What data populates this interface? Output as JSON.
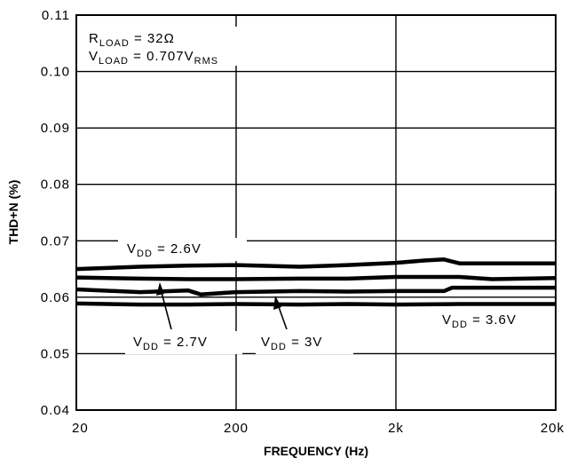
{
  "chart_data": {
    "type": "line",
    "title": "",
    "xlabel": "FREQUENCY (Hz)",
    "ylabel": "THD+N (%)",
    "x_scale": "log",
    "xlim": [
      20,
      20000
    ],
    "ylim": [
      0.04,
      0.11
    ],
    "grid": true,
    "x_tick_labels": [
      {
        "value": 20,
        "label": "20"
      },
      {
        "value": 200,
        "label": "200"
      },
      {
        "value": 2000,
        "label": "2k"
      },
      {
        "value": 20000,
        "label": "20k"
      }
    ],
    "y_tick_labels": [
      {
        "value": 0.04,
        "label": "0.04"
      },
      {
        "value": 0.05,
        "label": "0.05"
      },
      {
        "value": 0.06,
        "label": "0.06"
      },
      {
        "value": 0.07,
        "label": "0.07"
      },
      {
        "value": 0.08,
        "label": "0.08"
      },
      {
        "value": 0.09,
        "label": "0.09"
      },
      {
        "value": 0.1,
        "label": "0.10"
      },
      {
        "value": 0.11,
        "label": "0.11"
      }
    ],
    "conditions": [
      {
        "main": "R",
        "sub": "LOAD",
        "rest": " = 32Ω"
      },
      {
        "main": "V",
        "sub": "LOAD",
        "rest": " = 0.707V",
        "sub2": "RMS"
      }
    ],
    "series": [
      {
        "main": "V",
        "sub": "DD",
        "rest": " = 2.6V",
        "x": [
          20,
          50,
          100,
          200,
          500,
          1000,
          2000,
          3000,
          4000,
          5000,
          20000
        ],
        "y": [
          0.065,
          0.0654,
          0.0656,
          0.0657,
          0.0654,
          0.0657,
          0.0661,
          0.0665,
          0.0667,
          0.066,
          0.066
        ]
      },
      {
        "main": "V",
        "sub": "DD",
        "rest": " = 2.7V",
        "x": [
          20,
          50,
          100,
          200,
          500,
          1000,
          2000,
          5000,
          8000,
          20000
        ],
        "y": [
          0.0635,
          0.0633,
          0.0632,
          0.0632,
          0.0633,
          0.0633,
          0.0636,
          0.0636,
          0.0632,
          0.0634
        ]
      },
      {
        "main": "V",
        "sub": "DD",
        "rest": " = 3V",
        "x": [
          20,
          50,
          100,
          120,
          200,
          500,
          1000,
          2000,
          4000,
          4500,
          20000
        ],
        "y": [
          0.0614,
          0.0609,
          0.0612,
          0.0605,
          0.0609,
          0.0611,
          0.061,
          0.0611,
          0.0611,
          0.0617,
          0.0617
        ]
      },
      {
        "main": "V",
        "sub": "DD",
        "rest": " = 3.6V",
        "x": [
          20,
          50,
          100,
          200,
          500,
          1000,
          2000,
          5000,
          20000
        ],
        "y": [
          0.0589,
          0.0587,
          0.0587,
          0.0588,
          0.0587,
          0.0588,
          0.0587,
          0.0588,
          0.0588
        ]
      }
    ]
  }
}
